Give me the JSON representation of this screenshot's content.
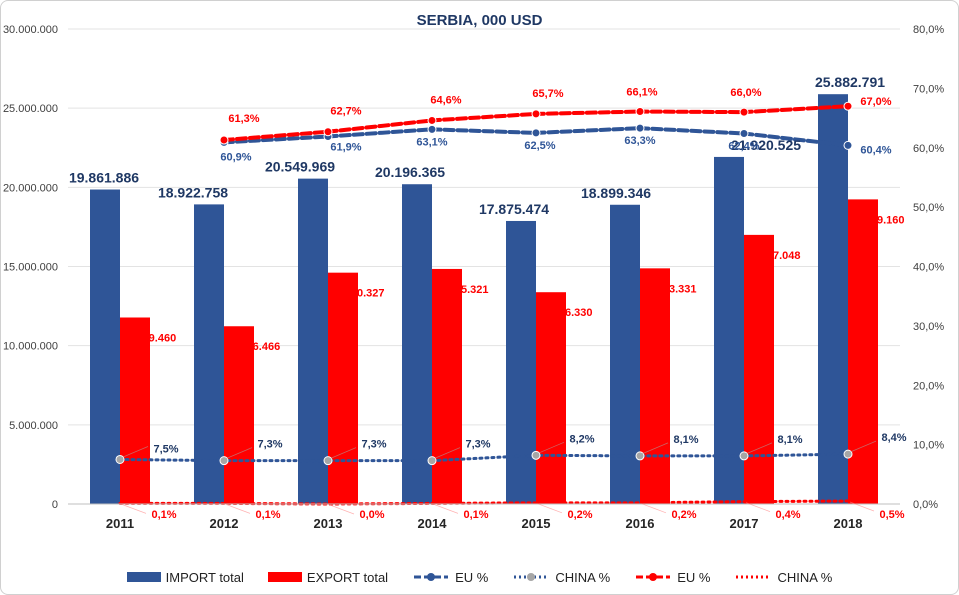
{
  "chart_data": {
    "type": "bar",
    "title": "SERBIA, 000 USD",
    "categories": [
      "2011",
      "2012",
      "2013",
      "2014",
      "2015",
      "2016",
      "2017",
      "2018"
    ],
    "series": [
      {
        "name": "IMPORT total",
        "axis": "left",
        "kind": "bar",
        "color": "#2f5597",
        "values": [
          19861886,
          18922758,
          20549969,
          20196365,
          17875474,
          18899346,
          21920525,
          25882791
        ],
        "labels": [
          "19.861.886",
          "18.922.758",
          "20.549.969",
          "20.196.365",
          "17.875.474",
          "18.899.346",
          "21.920.525",
          "25.882.791"
        ]
      },
      {
        "name": "EXPORT total",
        "axis": "left",
        "kind": "bar",
        "color": "#ff0000",
        "values": [
          11779460,
          11226466,
          14610327,
          14845321,
          13376330,
          14883331,
          16997048,
          19239160
        ],
        "labels": [
          "11.779.460",
          "11.226.466",
          "14.610.327",
          "14.845.321",
          "13.376.330",
          "14.883.331",
          "16.997.048",
          "19.239.160"
        ]
      },
      {
        "name": "EU %",
        "axis": "right",
        "kind": "line-dashed-marker",
        "color": "#2f5597",
        "values": [
          null,
          60.9,
          61.9,
          63.1,
          62.5,
          63.3,
          62.4,
          60.4
        ],
        "labels": [
          "",
          "60,9%",
          "61,9%",
          "63,1%",
          "62,5%",
          "63,3%",
          "62,4%",
          "60,4%"
        ]
      },
      {
        "name": "CHINA %",
        "axis": "right",
        "kind": "line-dotted-marker",
        "color": "#2f5597",
        "marker_color": "#a6a6a6",
        "values": [
          7.5,
          7.3,
          7.3,
          7.3,
          8.2,
          8.1,
          8.1,
          8.4
        ],
        "labels": [
          "7,5%",
          "7,3%",
          "7,3%",
          "7,3%",
          "8,2%",
          "8,1%",
          "8,1%",
          "8,4%"
        ]
      },
      {
        "name": "EU %",
        "axis": "right",
        "kind": "line-dashed-marker",
        "color": "#ff0000",
        "values": [
          null,
          61.3,
          62.7,
          64.6,
          65.7,
          66.1,
          66.0,
          67.0
        ],
        "labels": [
          "",
          "61,3%",
          "62,7%",
          "64,6%",
          "65,7%",
          "66,1%",
          "66,0%",
          "67,0%"
        ]
      },
      {
        "name": "CHINA %",
        "axis": "right",
        "kind": "line-dotted",
        "color": "#ff0000",
        "values": [
          0.1,
          0.1,
          0.0,
          0.1,
          0.2,
          0.2,
          0.4,
          0.5
        ],
        "labels": [
          "0,1%",
          "0,1%",
          "0,0%",
          "0,1%",
          "0,2%",
          "0,2%",
          "0,4%",
          "0,5%"
        ]
      }
    ],
    "y_left": {
      "ylim": [
        0,
        30000000
      ],
      "ticks": [
        "0",
        "5.000.000",
        "10.000.000",
        "15.000.000",
        "20.000.000",
        "25.000.000",
        "30.000.000"
      ]
    },
    "y_right": {
      "ylim": [
        0,
        80
      ],
      "ticks": [
        "0,0%",
        "10,0%",
        "20,0%",
        "30,0%",
        "40,0%",
        "50,0%",
        "60,0%",
        "70,0%",
        "80,0%"
      ]
    },
    "grid": true,
    "legend": "bottom"
  }
}
